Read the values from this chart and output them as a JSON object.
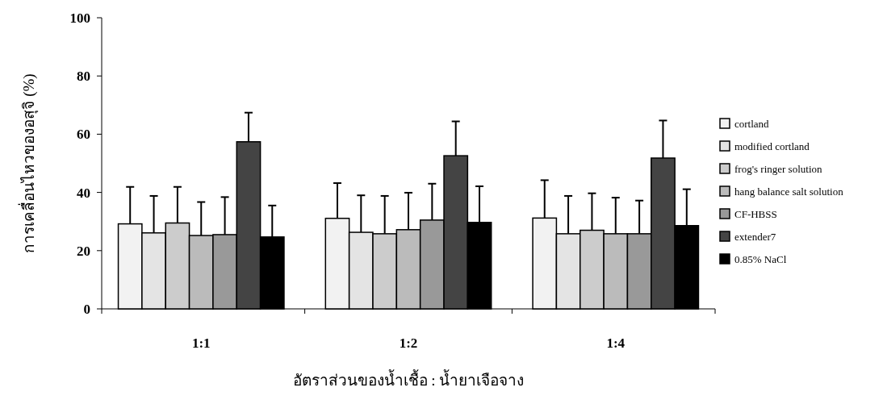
{
  "chart_data": {
    "type": "bar",
    "xlabel": "อัตราส่วนของน้ำเชื้อ : น้ำยาเจือจาง",
    "ylabel": "การเคลื่อนไหวของอสุจิ (%)",
    "categories": [
      "1:1",
      "1:2",
      "1:4"
    ],
    "ylim": [
      0,
      100
    ],
    "yticks": [
      0,
      20,
      40,
      60,
      80,
      100
    ],
    "legend": "right",
    "grid": false,
    "series": [
      {
        "name": "cortland",
        "color": "#f2f2f2",
        "values": [
          29.2,
          31.1,
          31.2
        ],
        "errors": [
          12.7,
          12.1,
          13.0
        ]
      },
      {
        "name": "modified cortland",
        "color": "#e4e4e4",
        "values": [
          26.1,
          26.3,
          25.8
        ],
        "errors": [
          12.7,
          12.7,
          13.0
        ]
      },
      {
        "name": "frog's ringer solution",
        "color": "#cccccc",
        "values": [
          29.5,
          25.8,
          27.0
        ],
        "errors": [
          12.4,
          13.0,
          12.7
        ]
      },
      {
        "name": "hang balance salt solution",
        "color": "#bbbbbb",
        "values": [
          25.2,
          27.2,
          25.8
        ],
        "errors": [
          11.5,
          12.7,
          12.4
        ]
      },
      {
        "name": "CF-HBSS",
        "color": "#999999",
        "values": [
          25.5,
          30.5,
          25.8
        ],
        "errors": [
          12.9,
          12.5,
          11.4
        ]
      },
      {
        "name": "extender7",
        "color": "#444444",
        "values": [
          57.4,
          52.6,
          51.8
        ],
        "errors": [
          10.0,
          11.8,
          12.9
        ]
      },
      {
        "name": "0.85% NaCl",
        "color": "#000000",
        "values": [
          24.7,
          29.7,
          28.6
        ],
        "errors": [
          10.8,
          12.4,
          12.5
        ]
      }
    ]
  }
}
